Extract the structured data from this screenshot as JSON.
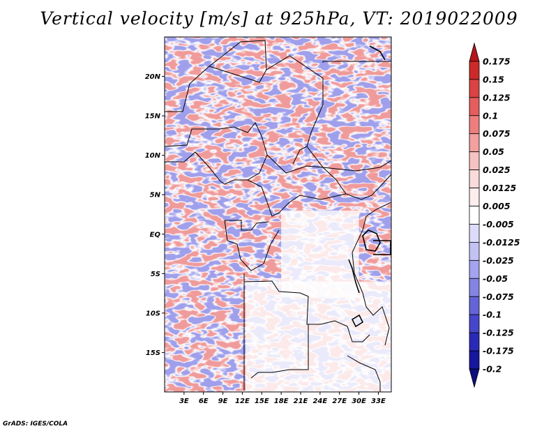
{
  "title": "Vertical velocity [m/s] at 925hPa, VT: 2019022009",
  "credit": "GrADS: IGES/COLA",
  "map": {
    "lon_range": [
      0,
      35
    ],
    "lat_range": [
      -20,
      25
    ],
    "lon_ticks": [
      {
        "value": 3,
        "label": "3E"
      },
      {
        "value": 6,
        "label": "6E"
      },
      {
        "value": 9,
        "label": "9E"
      },
      {
        "value": 12,
        "label": "12E"
      },
      {
        "value": 15,
        "label": "15E"
      },
      {
        "value": 18,
        "label": "18E"
      },
      {
        "value": 21,
        "label": "21E"
      },
      {
        "value": 24,
        "label": "24E"
      },
      {
        "value": 27,
        "label": "27E"
      },
      {
        "value": 30,
        "label": "30E"
      },
      {
        "value": 33,
        "label": "33E"
      }
    ],
    "lat_ticks": [
      {
        "value": 20,
        "label": "20N"
      },
      {
        "value": 15,
        "label": "15N"
      },
      {
        "value": 10,
        "label": "10N"
      },
      {
        "value": 5,
        "label": "5N"
      },
      {
        "value": 0,
        "label": "EQ"
      },
      {
        "value": -5,
        "label": "5S"
      },
      {
        "value": -10,
        "label": "10S"
      },
      {
        "value": -15,
        "label": "15S"
      }
    ],
    "blank_regions": [
      {
        "name": "southern-interior",
        "lon": [
          12.5,
          35
        ],
        "lat": [
          -20,
          -6
        ]
      },
      {
        "name": "central-interior",
        "lon": [
          18,
          30
        ],
        "lat": [
          -8,
          3
        ]
      }
    ]
  },
  "colorbar": {
    "levels": [
      "0.175",
      "0.15",
      "0.125",
      "0.1",
      "0.075",
      "0.05",
      "0.025",
      "0.0125",
      "0.005",
      "-0.005",
      "-0.0125",
      "-0.025",
      "-0.05",
      "-0.075",
      "-0.1",
      "-0.125",
      "-0.175",
      "-0.2"
    ],
    "colors": [
      "#b5141b",
      "#cc2a2a",
      "#db4343",
      "#e65d5d",
      "#ee7e7e",
      "#f3a0a0",
      "#f7c2c2",
      "#fadada",
      "#fdeded",
      "#ffffff",
      "#dcdcfa",
      "#c2c2f5",
      "#a3a3ee",
      "#8484e4",
      "#6464d8",
      "#4646cc",
      "#2a2ab8",
      "#1616a0",
      "#0c0c80"
    ]
  }
}
